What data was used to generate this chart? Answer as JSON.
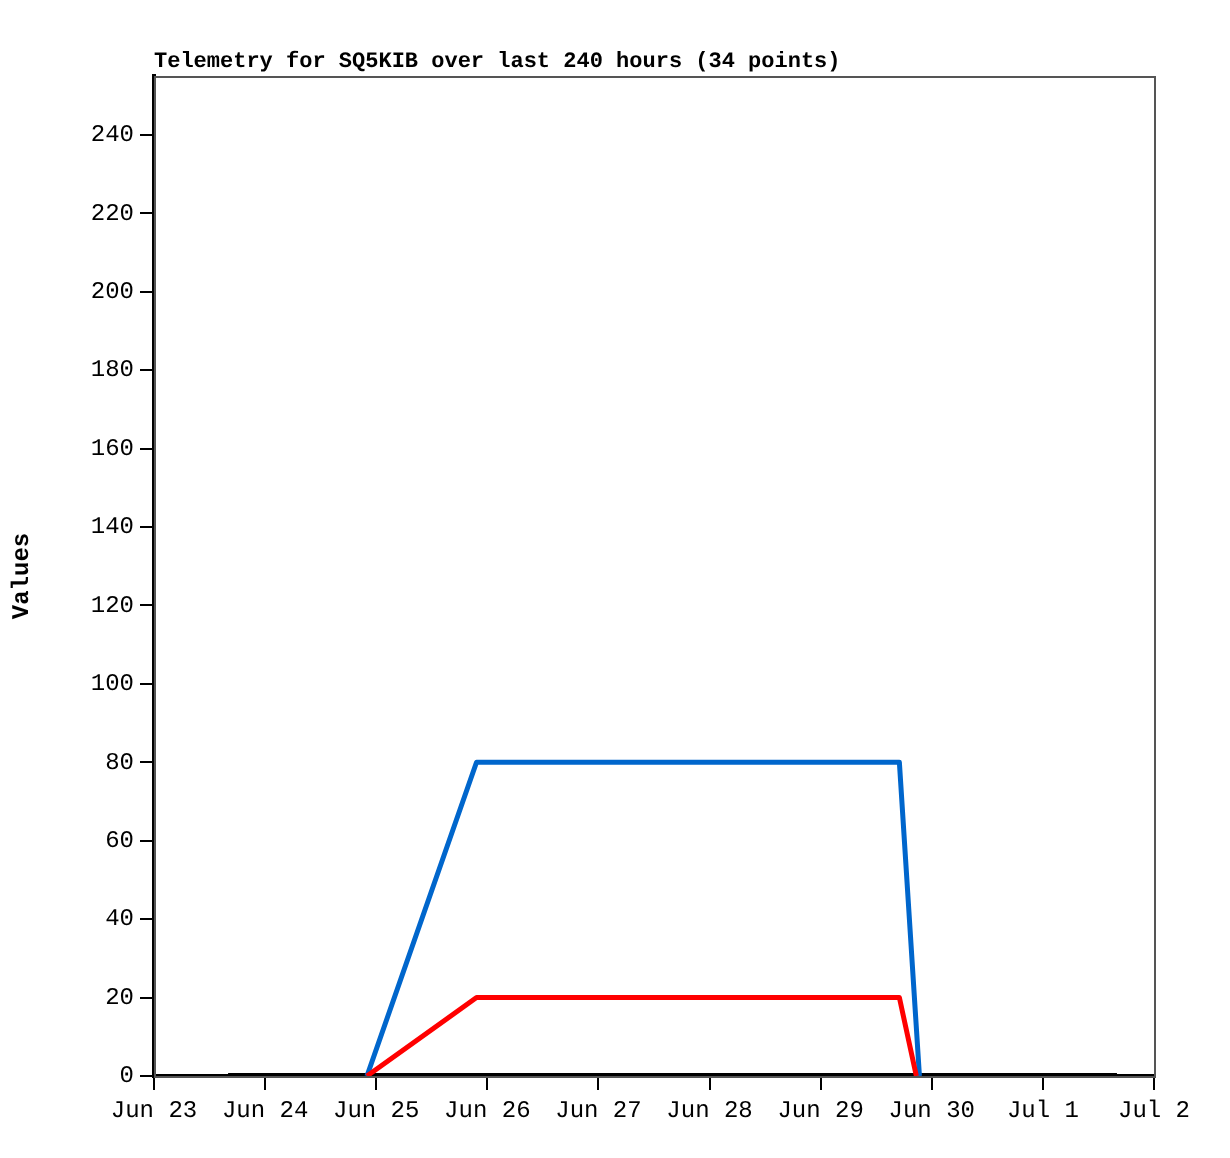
{
  "chart_data": {
    "type": "line",
    "title": "Telemetry for SQ5KIB over last 240 hours (34 points)",
    "ylabel": "Values",
    "xlim": [
      "--06-23",
      "--07-02"
    ],
    "xticks": [
      {
        "value": "--06-23",
        "label": "Jun 23"
      },
      {
        "value": "--06-24",
        "label": "Jun 24"
      },
      {
        "value": "--06-25",
        "label": "Jun 25"
      },
      {
        "value": "--06-26",
        "label": "Jun 26"
      },
      {
        "value": "--06-27",
        "label": "Jun 27"
      },
      {
        "value": "--06-28",
        "label": "Jun 28"
      },
      {
        "value": "--06-29",
        "label": "Jun 29"
      },
      {
        "value": "--06-30",
        "label": "Jun 30"
      },
      {
        "value": "--07-01",
        "label": "Jul 1"
      },
      {
        "value": "--07-02",
        "label": "Jul 2"
      }
    ],
    "ylim": [
      0,
      255
    ],
    "yticks": [
      0,
      20,
      40,
      60,
      80,
      100,
      120,
      140,
      160,
      180,
      200,
      220,
      240
    ],
    "grid": false,
    "legend": false,
    "marker": "none",
    "line_style": "solid",
    "series": [
      {
        "color": "#000000",
        "x": [
          "--06-23T16:00",
          "--07-01T16:00"
        ],
        "values": [
          0,
          0
        ]
      },
      {
        "color": "#0066cc",
        "x": [
          "--06-24T22:00",
          "--06-25T21:40",
          "--06-29T17:00",
          "--06-29T21:20"
        ],
        "values": [
          0,
          80,
          80,
          0
        ]
      },
      {
        "color": "#ff0000",
        "x": [
          "--06-24T22:00",
          "--06-25T21:40",
          "--06-29T17:00",
          "--06-29T20:40"
        ],
        "values": [
          0,
          20,
          20,
          0
        ]
      }
    ]
  }
}
